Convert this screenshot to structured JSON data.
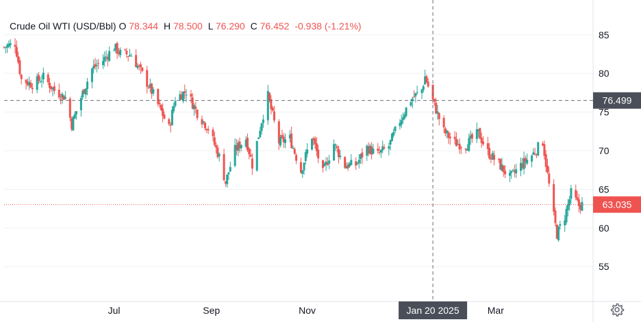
{
  "legend": {
    "symbol": "Crude Oil WTI (USD/Bbl)",
    "o_label": "O",
    "o_value": "78.344",
    "h_label": "H",
    "h_value": "78.500",
    "l_label": "L",
    "l_value": "76.290",
    "c_label": "C",
    "c_value": "76.452",
    "change": "-0.938 (-1.21%)"
  },
  "colors": {
    "up": "#26a69a",
    "down": "#ef5350",
    "crosshair_label_bg": "#4a4e58",
    "grid": "#eef0f3"
  },
  "icons": {
    "settings": "gear-icon"
  },
  "chart_data": {
    "type": "candlestick",
    "yticks": [
      55,
      60,
      65,
      70,
      75,
      80,
      85
    ],
    "ylim": [
      50.5,
      89.5
    ],
    "xticks": [
      {
        "label": "Jul",
        "date": "2024-07-01"
      },
      {
        "label": "Sep",
        "date": "2024-09-01"
      },
      {
        "label": "Nov",
        "date": "2024-11-01"
      },
      {
        "label": "Mar",
        "date": "2025-03-01"
      }
    ],
    "xlim": [
      "2024-04-22",
      "2025-05-02"
    ],
    "crosshair": {
      "date": "2025-01-20",
      "date_label": "Jan 20 2025",
      "price": 76.499,
      "price_label": "76.499"
    },
    "last_price": {
      "value": 63.035,
      "label": "63.035"
    },
    "series_points": [
      [
        "2024-04-22",
        83.4
      ],
      [
        "2024-04-29",
        83.9
      ],
      [
        "2024-05-03",
        79.2
      ],
      [
        "2024-05-10",
        78.6
      ],
      [
        "2024-05-17",
        79.5
      ],
      [
        "2024-05-24",
        77.8
      ],
      [
        "2024-05-31",
        76.9
      ],
      [
        "2024-06-04",
        73.4
      ],
      [
        "2024-06-10",
        76.9
      ],
      [
        "2024-06-17",
        80.6
      ],
      [
        "2024-06-24",
        81.7
      ],
      [
        "2024-07-01",
        83.4
      ],
      [
        "2024-07-05",
        82.6
      ],
      [
        "2024-07-12",
        82.4
      ],
      [
        "2024-07-19",
        79.9
      ],
      [
        "2024-07-26",
        77.3
      ],
      [
        "2024-08-05",
        72.9
      ],
      [
        "2024-08-09",
        76.8
      ],
      [
        "2024-08-16",
        77.7
      ],
      [
        "2024-08-23",
        74.9
      ],
      [
        "2024-08-30",
        72.9
      ],
      [
        "2024-09-06",
        69.2
      ],
      [
        "2024-09-10",
        65.9
      ],
      [
        "2024-09-16",
        70.1
      ],
      [
        "2024-09-23",
        71.6
      ],
      [
        "2024-09-27",
        68.2
      ],
      [
        "2024-10-03",
        73.9
      ],
      [
        "2024-10-07",
        77.1
      ],
      [
        "2024-10-14",
        71.1
      ],
      [
        "2024-10-21",
        71.6
      ],
      [
        "2024-10-28",
        67.4
      ],
      [
        "2024-11-04",
        71.9
      ],
      [
        "2024-11-11",
        67.1
      ],
      [
        "2024-11-18",
        70.9
      ],
      [
        "2024-11-25",
        68.1
      ],
      [
        "2024-12-02",
        68.2
      ],
      [
        "2024-12-09",
        70.4
      ],
      [
        "2024-12-16",
        69.5
      ],
      [
        "2024-12-23",
        70.6
      ],
      [
        "2024-12-30",
        73.9
      ],
      [
        "2025-01-06",
        76.6
      ],
      [
        "2025-01-13",
        77.9
      ],
      [
        "2025-01-15",
        79.6
      ],
      [
        "2025-01-20",
        76.45
      ],
      [
        "2025-01-27",
        72.5
      ],
      [
        "2025-02-03",
        71.0
      ],
      [
        "2025-02-10",
        70.7
      ],
      [
        "2025-02-18",
        72.3
      ],
      [
        "2025-02-24",
        69.8
      ],
      [
        "2025-03-03",
        68.3
      ],
      [
        "2025-03-10",
        66.5
      ],
      [
        "2025-03-17",
        68.1
      ],
      [
        "2025-03-24",
        69.4
      ],
      [
        "2025-03-31",
        71.2
      ],
      [
        "2025-04-03",
        66.9
      ],
      [
        "2025-04-07",
        61.5
      ],
      [
        "2025-04-09",
        59.2
      ],
      [
        "2025-04-14",
        61.5
      ],
      [
        "2025-04-18",
        64.5
      ],
      [
        "2025-04-23",
        62.9
      ],
      [
        "2025-04-25",
        63.035
      ]
    ]
  }
}
